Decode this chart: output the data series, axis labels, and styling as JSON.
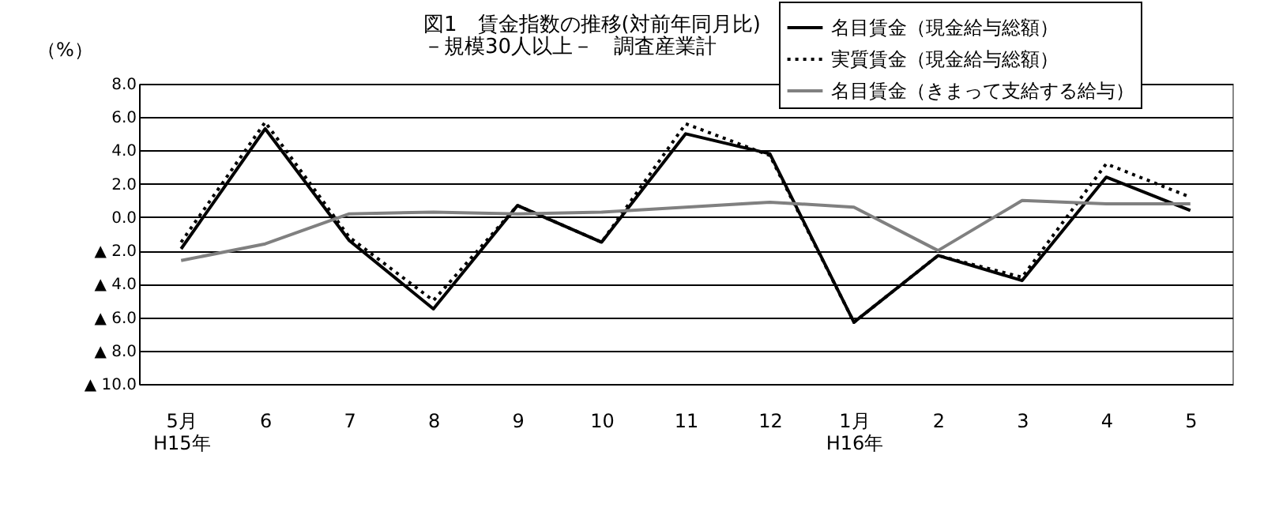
{
  "chart_data": {
    "type": "line",
    "title": "図1　賃金指数の推移(対前年同月比)",
    "subtitle": "－規模30人以上－　調査産業計",
    "ylabel": "（%）",
    "categories": [
      "5月\nH15年",
      "6",
      "7",
      "8",
      "9",
      "10",
      "11",
      "12",
      "1月\nH16年",
      "2",
      "3",
      "4",
      "5"
    ],
    "series": [
      {
        "name": "名目賃金（現金給与総額）",
        "color": "#000000",
        "line_style": "solid",
        "values": [
          -1.9,
          5.3,
          -1.4,
          -5.5,
          0.7,
          -1.5,
          5.0,
          3.8,
          -6.3,
          -2.3,
          -3.8,
          2.4,
          0.4
        ]
      },
      {
        "name": "実質賃金（現金給与総額）",
        "color": "#000000",
        "line_style": "dotted",
        "values": [
          -1.5,
          5.7,
          -1.2,
          -5.0,
          0.7,
          -1.5,
          5.6,
          3.7,
          -6.3,
          -2.3,
          -3.6,
          3.2,
          1.2
        ]
      },
      {
        "name": "名目賃金（きまって支給する給与）",
        "color": "#808080",
        "line_style": "solid",
        "values": [
          -2.6,
          -1.6,
          0.2,
          0.3,
          0.2,
          0.3,
          0.6,
          0.9,
          0.6,
          -2.0,
          1.0,
          0.8,
          0.8
        ]
      }
    ],
    "ylim": [
      -10,
      8
    ],
    "yticks": [
      {
        "value": 8,
        "label": "8.0"
      },
      {
        "value": 6,
        "label": "6.0"
      },
      {
        "value": 4,
        "label": "4.0"
      },
      {
        "value": 2,
        "label": "2.0"
      },
      {
        "value": 0,
        "label": "0.0"
      },
      {
        "value": -2,
        "label": "▲ 2.0"
      },
      {
        "value": -4,
        "label": "▲ 4.0"
      },
      {
        "value": -6,
        "label": "▲ 6.0"
      },
      {
        "value": -8,
        "label": "▲ 8.0"
      },
      {
        "value": -10,
        "label": "▲ 10.0"
      }
    ],
    "grid": "y",
    "legend": "top right",
    "marker": "none"
  }
}
